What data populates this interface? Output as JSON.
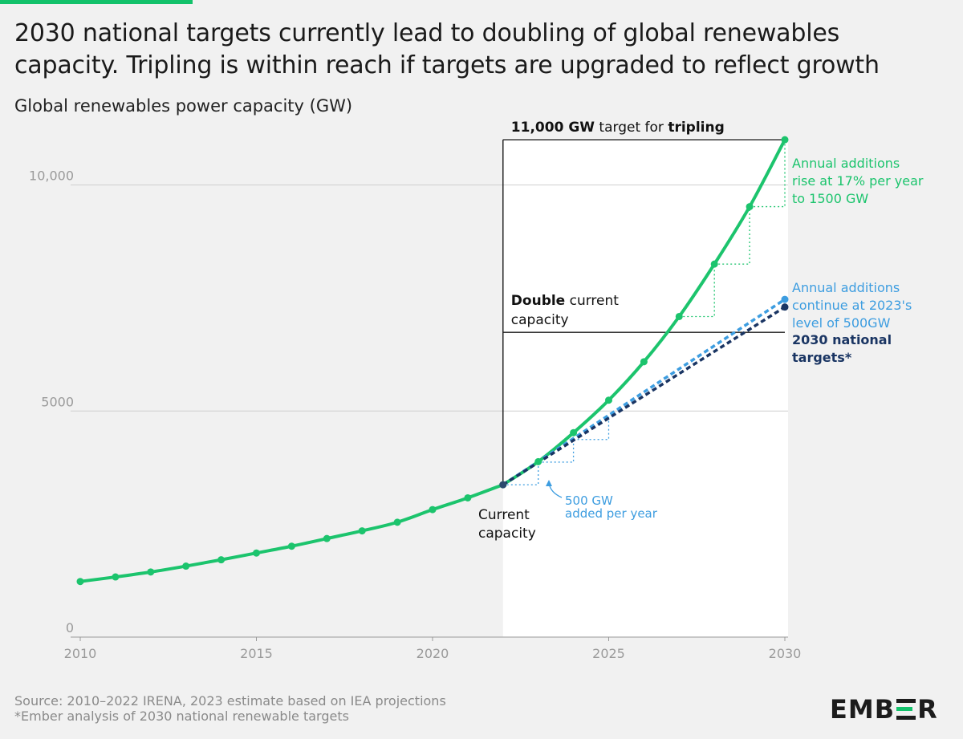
{
  "header": {
    "title_line1": "2030 national targets currently lead to doubling of global renewables",
    "title_line2": "capacity. Tripling is within reach if targets are upgraded to reflect growth",
    "subtitle": "Global renewables power capacity (GW)"
  },
  "footer": {
    "source_line1": "Source: 2010–2022 IRENA, 2023 estimate based on IEA projections",
    "source_line2": "*Ember analysis of 2030 national renewable targets"
  },
  "logo": {
    "text_left": "EMB",
    "text_right": "R"
  },
  "colors": {
    "green": "#1cc46d",
    "blue": "#3d9de0",
    "navy": "#1a3563",
    "grid": "#cfcfcf",
    "axis_text": "#9a9a9a",
    "brand_accent": "#13c26b"
  },
  "chart_data": {
    "type": "line",
    "xlim": [
      2010,
      2030
    ],
    "ylim": [
      0,
      11500
    ],
    "x_ticks": [
      2010,
      2015,
      2020,
      2025,
      2030
    ],
    "x_tick_labels": [
      "2010",
      "2015",
      "2020",
      "2025",
      "2030"
    ],
    "y_ticks": [
      0,
      5000,
      10000
    ],
    "y_tick_labels": [
      "0",
      "5000",
      "10,000"
    ],
    "grid": "horizontal",
    "highlight_region_x": [
      2022,
      2030
    ],
    "series": [
      {
        "key": "historical",
        "color": "#1cc46d",
        "x": [
          2010,
          2011,
          2012,
          2013,
          2014,
          2015,
          2016,
          2017,
          2018,
          2019,
          2020,
          2021,
          2022
        ],
        "y": [
          1230,
          1330,
          1440,
          1570,
          1710,
          1860,
          2010,
          2180,
          2350,
          2540,
          2820,
          3080,
          3370
        ]
      },
      {
        "key": "tripling",
        "color": "#1cc46d",
        "x": [
          2022,
          2023,
          2024,
          2025,
          2026,
          2027,
          2028,
          2029,
          2030
        ],
        "y": [
          3370,
          3880,
          4520,
          5240,
          6090,
          7090,
          8250,
          9520,
          11000
        ]
      },
      {
        "key": "continue_500",
        "color": "#3d9de0",
        "x": [
          2022,
          2030
        ],
        "y": [
          3370,
          7470
        ]
      },
      {
        "key": "national_targets",
        "color": "#1a3563",
        "x": [
          2022,
          2030
        ],
        "y": [
          3370,
          7300
        ]
      }
    ],
    "steps_green": [
      {
        "x0": 2027,
        "x1": 2028,
        "y0": 7090,
        "y1": 8250
      },
      {
        "x0": 2028,
        "x1": 2029,
        "y0": 8250,
        "y1": 9520
      },
      {
        "x0": 2029,
        "x1": 2030,
        "y0": 9520,
        "y1": 11000
      }
    ],
    "steps_blue": [
      {
        "x0": 2022,
        "x1": 2023,
        "y0": 3370,
        "y1": 3870
      },
      {
        "x0": 2023,
        "x1": 2024,
        "y0": 3870,
        "y1": 4370
      },
      {
        "x0": 2024,
        "x1": 2025,
        "y0": 4370,
        "y1": 4870
      }
    ],
    "reference_lines": [
      {
        "key": "tripling",
        "y": 11000,
        "x_from": 2022,
        "x_to": 2030,
        "label_bold": "11,000 GW",
        "label_mid": " target for ",
        "label_bold2": "tripling"
      },
      {
        "key": "doubling",
        "y": 6740,
        "x_from": 2022,
        "x_to": 2030,
        "label_bold": "Double",
        "label_mid": " current",
        "label_line2": "capacity"
      }
    ],
    "annotations": {
      "green_line1": "Annual additions",
      "green_line2": "rise at 17% per year",
      "green_line3": "to 1500 GW",
      "blue_line1": "Annual additions",
      "blue_line2": "continue at 2023's",
      "blue_line3": "level of 500GW",
      "navy_line1": "2030 national",
      "navy_line2": "targets*",
      "current_line1": "Current",
      "current_line2": "capacity",
      "added_line1": "500 GW",
      "added_line2": "added per year"
    }
  }
}
